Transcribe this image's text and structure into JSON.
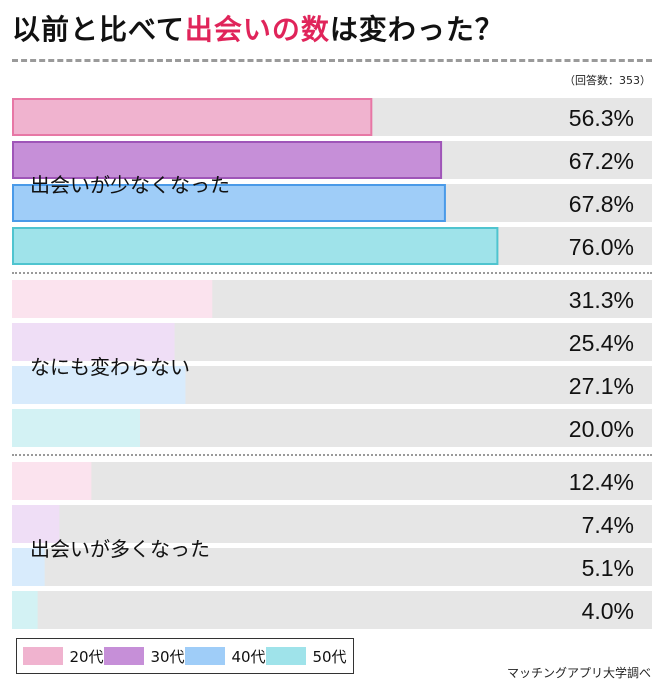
{
  "title": {
    "part1": "以前と比べて",
    "highlight": "出会いの数",
    "part2": "は変わった？"
  },
  "response_count": "（回答数：353）",
  "credit": "マッチングアプリ大学調べ",
  "colors": {
    "title_highlight": "#e0245a",
    "track": "#e6e6e6",
    "series_strong": [
      "#f0b3cf",
      "#c68fd8",
      "#9fcdf8",
      "#9fe3ea"
    ],
    "series_strong_border": [
      "#e777a5",
      "#9f55b8",
      "#4a9ae8",
      "#4fc4cf"
    ],
    "series_light": [
      "#fbe3ee",
      "#efdef6",
      "#d8ebfc",
      "#d3f2f4"
    ]
  },
  "legend": [
    {
      "label": "20代",
      "color": "#f0b3cf"
    },
    {
      "label": "30代",
      "color": "#c68fd8"
    },
    {
      "label": "40代",
      "color": "#9fcdf8"
    },
    {
      "label": "50代",
      "color": "#9fe3ea"
    }
  ],
  "chart_data": {
    "type": "bar",
    "orientation": "horizontal",
    "xlim": [
      0,
      100
    ],
    "unit": "%",
    "series_names": [
      "20代",
      "30代",
      "40代",
      "50代"
    ],
    "groups": [
      {
        "label": "出会いが少なくなった",
        "values": [
          56.3,
          67.2,
          67.8,
          76.0
        ],
        "value_labels": [
          "56.3%",
          "67.2%",
          "67.8%",
          "76.0%"
        ],
        "highlight": true
      },
      {
        "label": "なにも変わらない",
        "values": [
          31.3,
          25.4,
          27.1,
          20.0
        ],
        "value_labels": [
          "31.3%",
          "25.4%",
          "27.1%",
          "20.0%"
        ],
        "highlight": false
      },
      {
        "label": "出会いが多くなった",
        "values": [
          12.4,
          7.4,
          5.1,
          4.0
        ],
        "value_labels": [
          "12.4%",
          "7.4%",
          "5.1%",
          "4.0%"
        ],
        "highlight": false
      }
    ]
  }
}
